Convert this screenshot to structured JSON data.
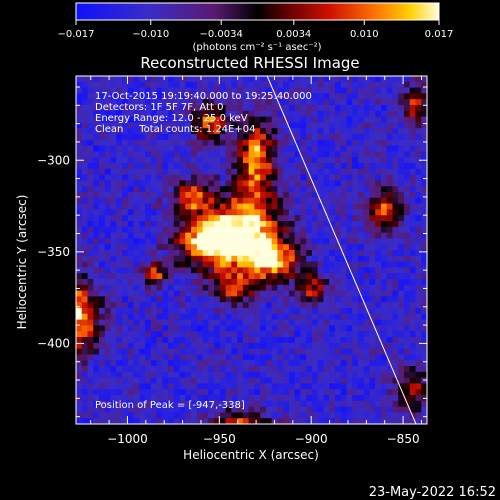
{
  "chart_data": {
    "type": "heatmap",
    "title": "Reconstructed RHESSI Image",
    "xlabel": "Heliocentric X (arcsec)",
    "ylabel": "Heliocentric Y (arcsec)",
    "xlim": [
      -1028,
      -837
    ],
    "ylim": [
      -444,
      -254
    ],
    "x_ticks": [
      -1000,
      -950,
      -900,
      -850
    ],
    "x_tick_labels": [
      "−1000",
      "−950",
      "−900",
      "−850"
    ],
    "y_ticks": [
      -300,
      -350,
      -400
    ],
    "y_tick_labels": [
      "−300",
      "−350",
      "−400"
    ],
    "colorbar": {
      "min": -0.017,
      "max": 0.017,
      "ticks": [
        -0.017,
        -0.01,
        -0.0034,
        0.0034,
        0.01,
        0.017
      ],
      "tick_labels": [
        "−0.017",
        "−0.010",
        "−0.0034",
        "0.0034",
        "0.010",
        "0.017"
      ],
      "units_label": "(photons cm⁻² s⁻¹ asec⁻²)"
    },
    "annotations": [
      "17-Oct-2015 19:19:40.000 to 19:25:40.000",
      "Detectors: 1F 5F 7F, Att 0",
      "Energy Range: 12.0 - 25.0 keV",
      "Clean     Total counts: 1.24E+04"
    ],
    "peak_label": "Position of Peak = [-947,-338]",
    "peak_position": [
      -947,
      -338
    ],
    "limb_line": [
      [
        -924,
        -254
      ],
      [
        -843,
        -444
      ]
    ],
    "sources": [
      {
        "x": -936,
        "y": -340,
        "sx": 14,
        "sy": 14,
        "amp": 0.017
      },
      {
        "x": -957,
        "y": -345,
        "sx": 12,
        "sy": 10,
        "amp": 0.013
      },
      {
        "x": -920,
        "y": -355,
        "sx": 10,
        "sy": 8,
        "amp": 0.01
      },
      {
        "x": -930,
        "y": -300,
        "sx": 8,
        "sy": 16,
        "amp": 0.012
      },
      {
        "x": -955,
        "y": -280,
        "sx": 7,
        "sy": 8,
        "amp": 0.008
      },
      {
        "x": -965,
        "y": -320,
        "sx": 8,
        "sy": 7,
        "amp": 0.007
      },
      {
        "x": -900,
        "y": -370,
        "sx": 6,
        "sy": 6,
        "amp": 0.006
      },
      {
        "x": -942,
        "y": -370,
        "sx": 8,
        "sy": 6,
        "amp": 0.006
      },
      {
        "x": -860,
        "y": -328,
        "sx": 7,
        "sy": 8,
        "amp": 0.01
      },
      {
        "x": -1028,
        "y": -385,
        "sx": 9,
        "sy": 14,
        "amp": 0.015
      },
      {
        "x": -938,
        "y": -450,
        "sx": 12,
        "sy": 8,
        "amp": 0.017
      },
      {
        "x": -985,
        "y": -362,
        "sx": 5,
        "sy": 5,
        "amp": 0.006
      },
      {
        "x": -843,
        "y": -270,
        "sx": 5,
        "sy": 8,
        "amp": 0.006
      },
      {
        "x": -845,
        "y": -425,
        "sx": 6,
        "sy": 9,
        "amp": 0.006
      }
    ]
  },
  "footer_date": "23-May-2022 16:52"
}
